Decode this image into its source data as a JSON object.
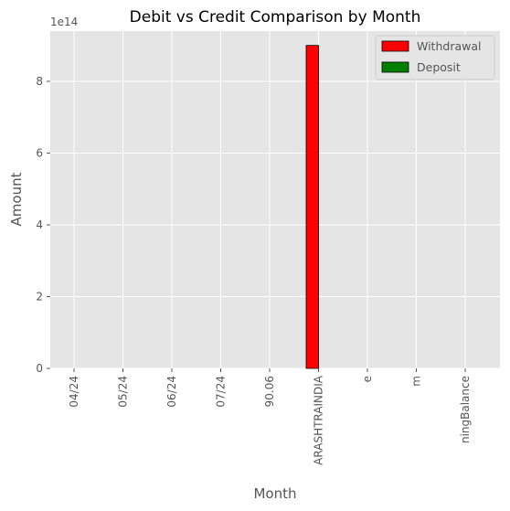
{
  "chart_data": {
    "type": "bar",
    "title": "Debit vs Credit Comparison by Month",
    "xlabel": "Month",
    "ylabel": "Amount",
    "y_offset_label": "1e14",
    "categories": [
      "04/24",
      "05/24",
      "06/24",
      "07/24",
      "90.06",
      "ARASHTRAINDIA",
      "e",
      "m",
      "ningBalance"
    ],
    "series": [
      {
        "name": "Withdrawal",
        "color": "#ff0000",
        "values": [
          0,
          0,
          0,
          0,
          0,
          900000000000000,
          0,
          0,
          0
        ]
      },
      {
        "name": "Deposit",
        "color": "#008000",
        "values": [
          0,
          0,
          0,
          0,
          0,
          0,
          0,
          0,
          0
        ]
      }
    ],
    "ylim": [
      0,
      940000000000000
    ],
    "yticks": [
      0,
      2,
      4,
      6,
      8
    ],
    "y_scale": 100000000000000,
    "grid": true,
    "legend_position": "top-right",
    "background": "#e5e5e5"
  }
}
